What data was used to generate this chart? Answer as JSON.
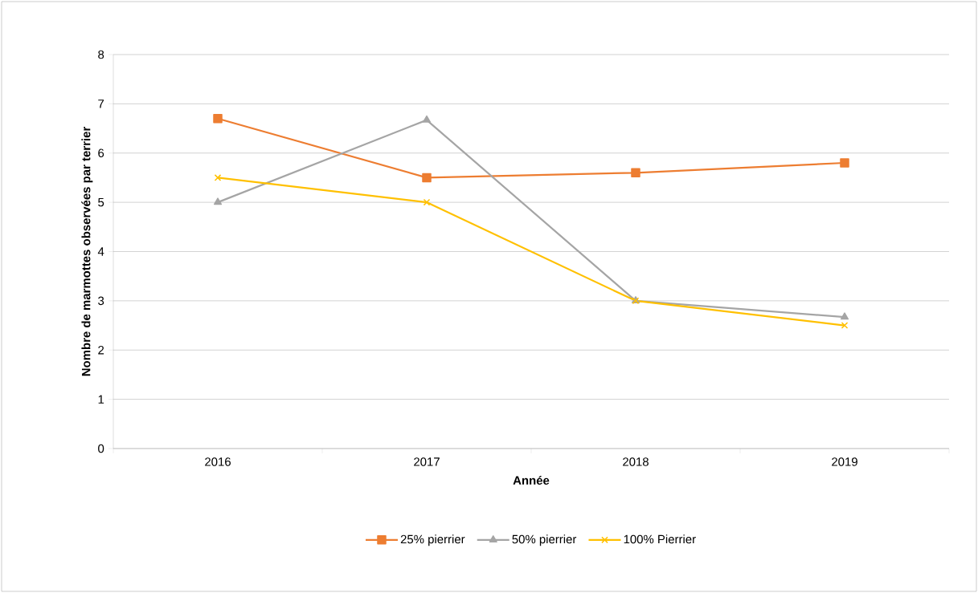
{
  "chart_data": {
    "type": "line",
    "xlabel": "Année",
    "ylabel": "Nombre de marmottes observées par terrier",
    "categories": [
      "2016",
      "2017",
      "2018",
      "2019"
    ],
    "series": [
      {
        "name": "25% pierrier",
        "color": "#ed7d31",
        "marker": "square",
        "values": [
          6.7,
          5.5,
          5.6,
          5.8
        ]
      },
      {
        "name": "50% pierrier",
        "color": "#a5a5a5",
        "marker": "triangle",
        "values": [
          5.0,
          6.67,
          3.0,
          2.67
        ]
      },
      {
        "name": "100% Pierrier",
        "color": "#ffc000",
        "marker": "cross",
        "values": [
          5.5,
          5.0,
          3.0,
          2.5
        ]
      }
    ],
    "ylim": [
      0,
      8
    ],
    "yticks": [
      0,
      1,
      2,
      3,
      4,
      5,
      6,
      7,
      8
    ],
    "grid": "y",
    "legend": "bottom",
    "line_style": "solid"
  }
}
